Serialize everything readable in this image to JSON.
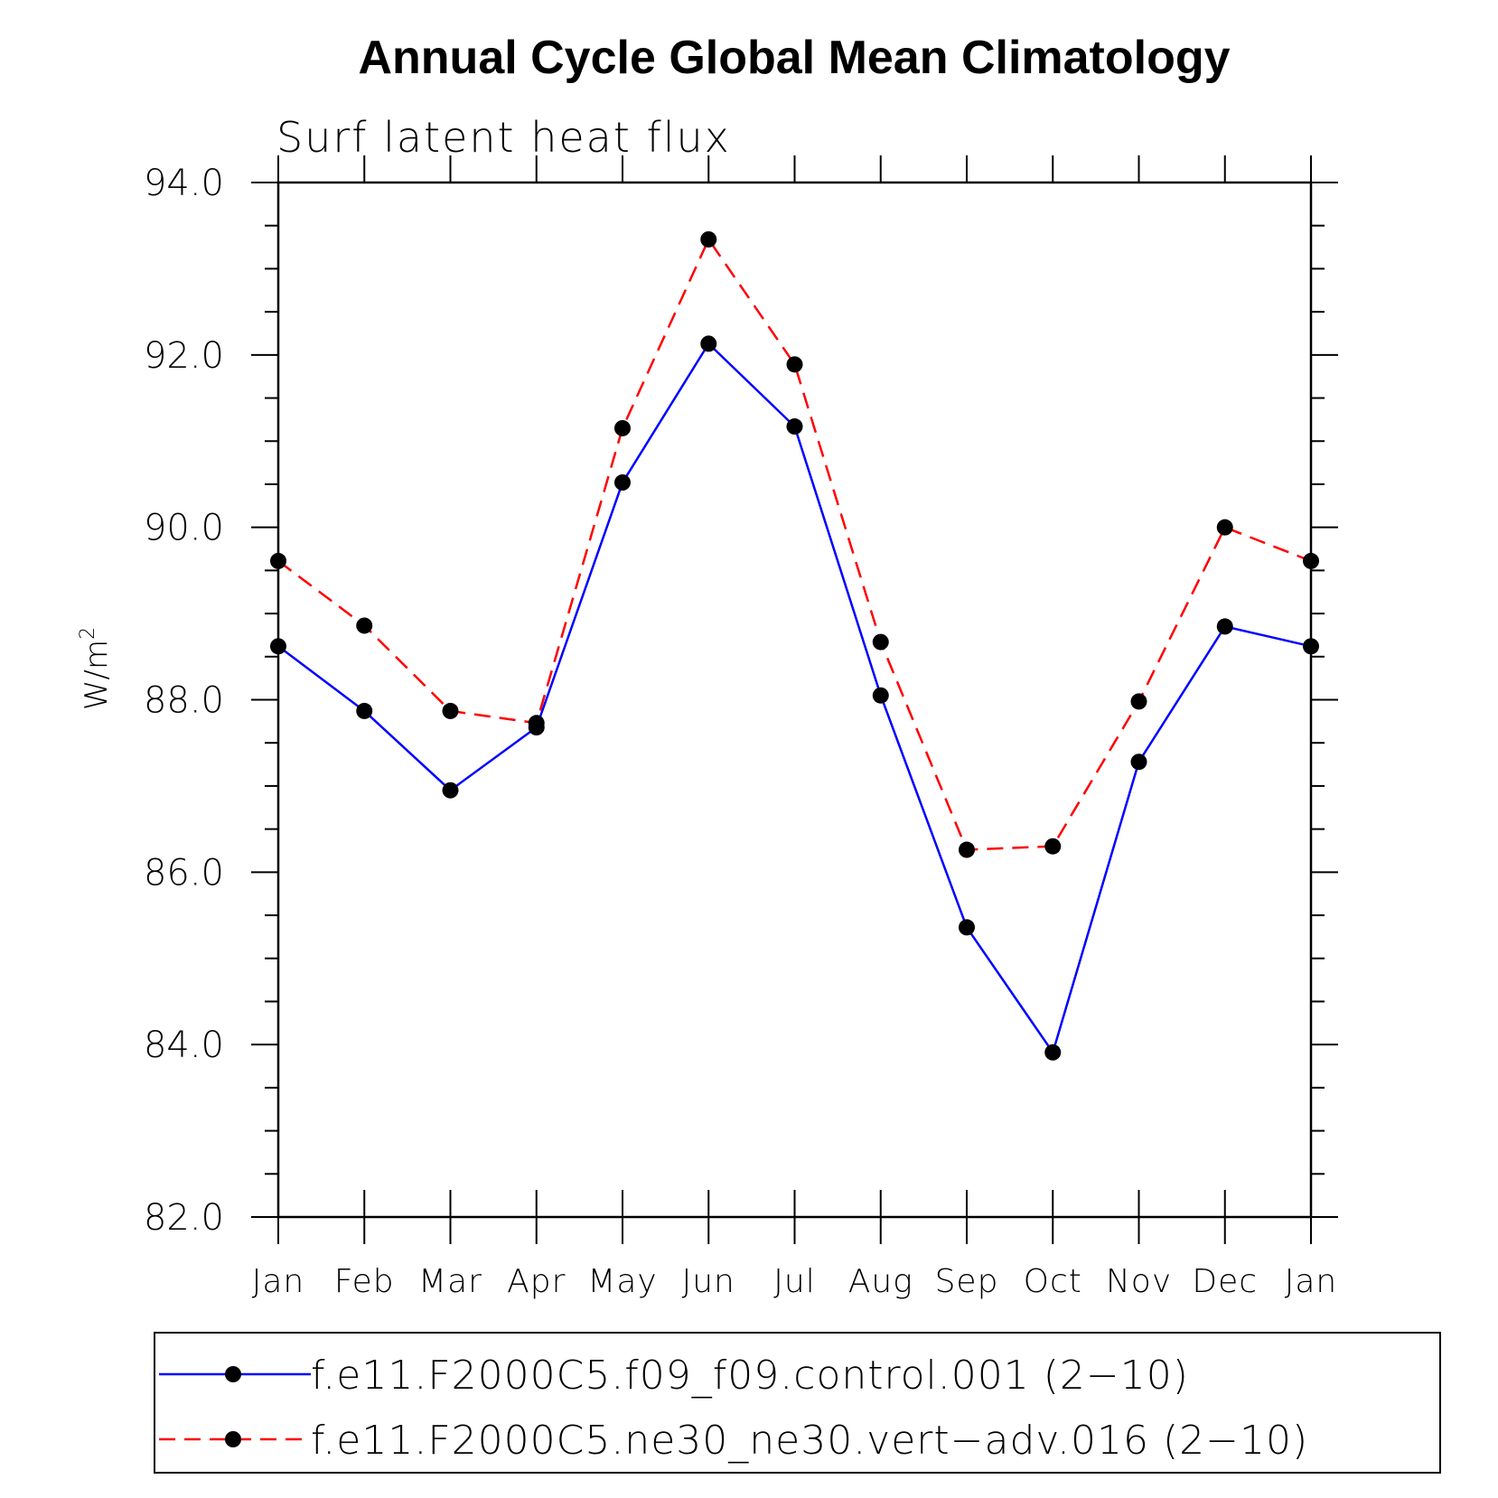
{
  "chart_data": {
    "type": "line",
    "title": "Annual Cycle Global Mean Climatology",
    "subtitle": "Surf latent heat flux",
    "ylabel": "W/m",
    "ylabel_superscript": "2",
    "ylim": [
      82.0,
      94.0
    ],
    "yticks": [
      "82.0",
      "84.0",
      "86.0",
      "88.0",
      "90.0",
      "92.0",
      "94.0"
    ],
    "categories": [
      "Jan",
      "Feb",
      "Mar",
      "Apr",
      "May",
      "Jun",
      "Jul",
      "Aug",
      "Sep",
      "Oct",
      "Nov",
      "Dec",
      "Jan"
    ],
    "series": [
      {
        "name": "f.e11.F2000C5.f09_f09.control.001 (2−10)",
        "color": "#0000ff",
        "dash": "solid",
        "marker_color": "#000000",
        "values": [
          88.62,
          87.87,
          86.95,
          87.68,
          90.52,
          92.13,
          91.17,
          88.05,
          85.36,
          83.91,
          87.28,
          88.85,
          88.62
        ]
      },
      {
        "name": "f.e11.F2000C5.ne30_ne30.vert−adv.016 (2−10)",
        "color": "#ff0000",
        "dash": "dashed",
        "marker_color": "#000000",
        "values": [
          89.61,
          88.86,
          87.87,
          87.73,
          91.15,
          93.34,
          91.89,
          88.67,
          86.26,
          86.3,
          87.98,
          90.0,
          89.61
        ]
      }
    ]
  }
}
